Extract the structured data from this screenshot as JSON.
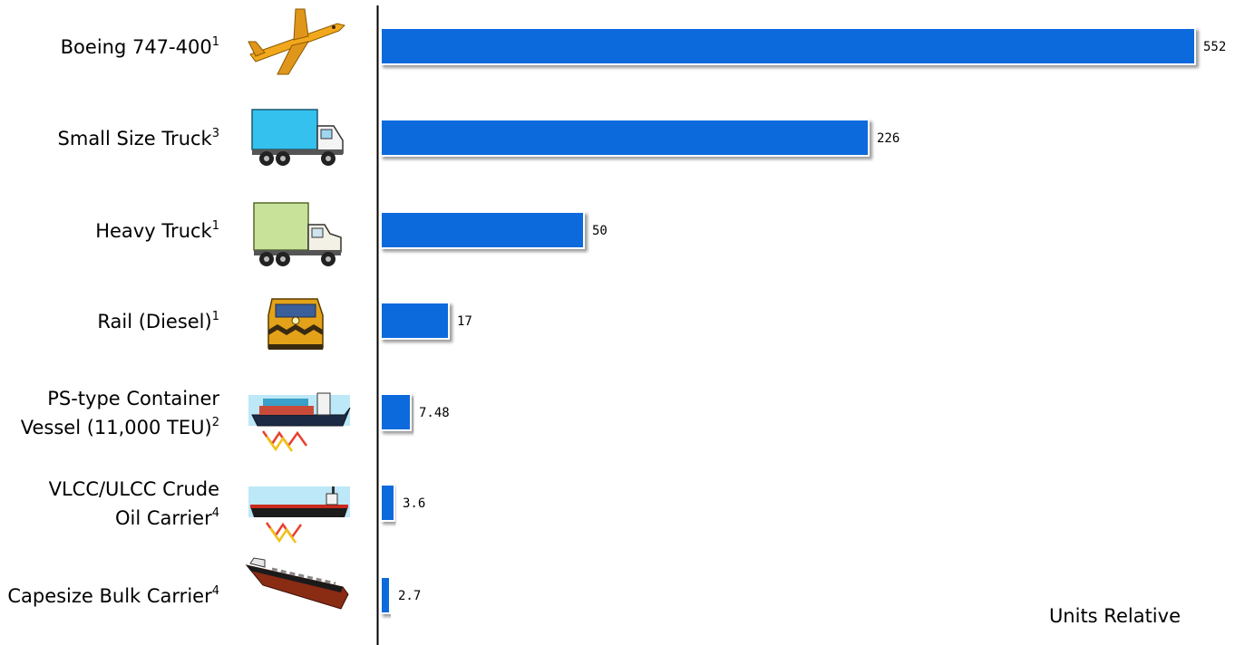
{
  "chart_data": {
    "type": "bar",
    "orientation": "horizontal",
    "categories": [
      {
        "lines": [
          "Boeing 747-400"
        ],
        "sup": "1",
        "icon": "airplane-icon"
      },
      {
        "lines": [
          "Small Size Truck"
        ],
        "sup": "3",
        "icon": "box-truck-icon"
      },
      {
        "lines": [
          "Heavy Truck"
        ],
        "sup": "1",
        "icon": "heavy-truck-icon"
      },
      {
        "lines": [
          "Rail (Diesel)"
        ],
        "sup": "1",
        "icon": "diesel-locomotive-icon"
      },
      {
        "lines": [
          "PS-type Container",
          "Vessel  (11,000 TEU)"
        ],
        "sup": "2",
        "icon": "container-ship-icon"
      },
      {
        "lines": [
          "VLCC/ULCC Crude",
          "Oil Carrier"
        ],
        "sup": "4",
        "icon": "oil-tanker-icon"
      },
      {
        "lines": [
          "Capesize Bulk Carrier"
        ],
        "sup": "4",
        "icon": "bulk-carrier-icon"
      }
    ],
    "values": [
      552,
      226,
      50,
      17,
      7.48,
      3.6,
      2.7
    ],
    "value_labels": [
      "552",
      "226",
      "50",
      "17",
      "7.48",
      "3.6",
      "2.7"
    ],
    "xlim": [
      0,
      552
    ],
    "scale_note": "bar lengths are not linear in value",
    "grid": false,
    "bar_color": "#0a6bdc",
    "axis_note": "Units Relative"
  }
}
